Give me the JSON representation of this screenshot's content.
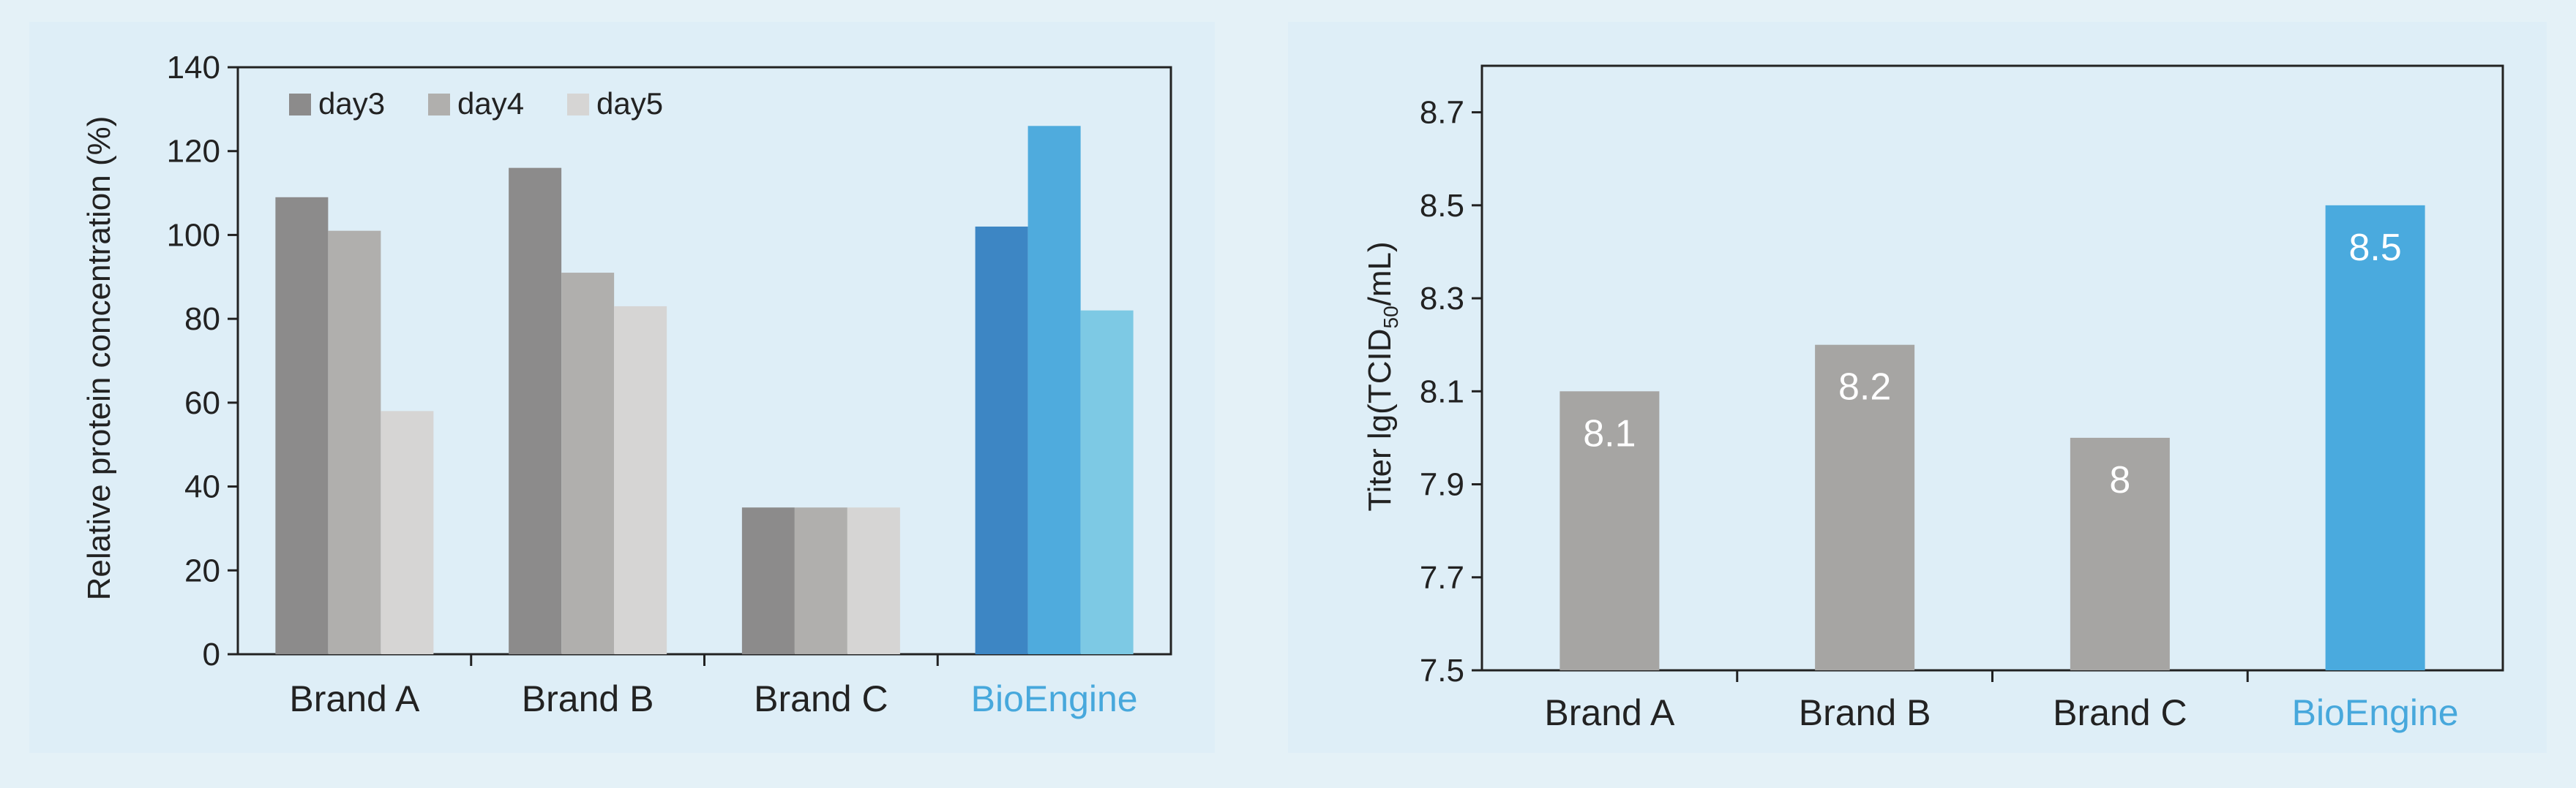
{
  "colors": {
    "background": "#e4f1f7",
    "panel": "#deeef7",
    "day3_gray": "#8c8b8b",
    "day4_gray": "#b0afad",
    "day5_gray": "#d6d5d4",
    "day3_blue": "#3d86c4",
    "day4_blue": "#4fabdd",
    "day5_blue": "#7dc9e4",
    "bar_gray": "#a6a5a3",
    "bar_blue": "#4aaade",
    "highlight_label": "#47a8dc"
  },
  "chart_data": [
    {
      "type": "bar",
      "title": "",
      "xlabel": "",
      "ylabel": "Relative protein concentration (%)",
      "categories": [
        "Brand A",
        "Brand B",
        "Brand C",
        "BioEngine"
      ],
      "highlight_category": "BioEngine",
      "series": [
        {
          "name": "day3",
          "values": [
            109,
            116,
            35,
            102
          ]
        },
        {
          "name": "day4",
          "values": [
            101,
            91,
            35,
            126
          ]
        },
        {
          "name": "day5",
          "values": [
            58,
            83,
            35,
            82
          ]
        }
      ],
      "ylim": [
        0,
        140
      ],
      "yticks": [
        0,
        20,
        40,
        60,
        80,
        100,
        120,
        140
      ],
      "legend": "top-left",
      "grid": false
    },
    {
      "type": "bar",
      "title": "",
      "xlabel": "",
      "ylabel_prefix": "Titer  lg(TCID",
      "ylabel_sub": "50",
      "ylabel_suffix": "/mL)",
      "categories": [
        "Brand A",
        "Brand B",
        "Brand C",
        "BioEngine"
      ],
      "highlight_category": "BioEngine",
      "values": [
        8.1,
        8.2,
        8.0,
        8.5
      ],
      "data_labels": [
        "8.1",
        "8.2",
        "8",
        "8.5"
      ],
      "ylim": [
        7.5,
        8.8
      ],
      "yticks": [
        "7.5",
        "7.7",
        "7.9",
        "8.1",
        "8.3",
        "8.5",
        "8.7"
      ],
      "grid": false
    }
  ]
}
